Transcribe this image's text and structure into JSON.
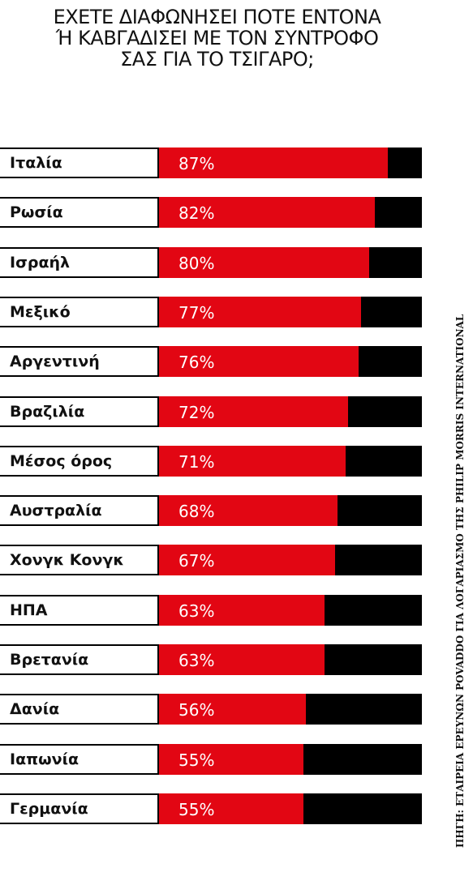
{
  "title_lines": [
    "ΕΧΕΤΕ ΔΙΑΦΩΝΗΣΕΙ ΠΟΤΕ ΕΝΤΟΝΑ",
    "Ή ΚΑΒΓΑΔΙΣΕΙ ΜΕ ΤΟΝ ΣΥΝΤΡΟΦΟ",
    "ΣΑΣ ΓΙΑ ΤΟ ΤΣΙΓΑΡΟ;"
  ],
  "source": "ΠΗΓΗ: ΕΤΑΙΡΕΙΑ ΕΡΕΥΝΩΝ POVADDO ΓΙΑ ΛΟΓΑΡΙΑΣΜΟ ΤΗΣ PHILIP MORRIS INTERNATIONAL",
  "colors": {
    "bar": "#e20613",
    "remainder": "#000000",
    "label_bg": "#ffffff"
  },
  "chart_data": {
    "type": "bar",
    "orientation": "horizontal",
    "categories": [
      "Ιταλία",
      "Ρωσία",
      "Ισραήλ",
      "Μεξικό",
      "Αργεντινή",
      "Βραζιλία",
      "Μέσος όρος",
      "Αυστραλία",
      "Χονγκ Κονγκ",
      "ΗΠΑ",
      "Βρετανία",
      "Δανία",
      "Ιαπωνία",
      "Γερμανία"
    ],
    "values": [
      87,
      82,
      80,
      77,
      76,
      72,
      71,
      68,
      67,
      63,
      63,
      56,
      55,
      55
    ],
    "value_labels": [
      "87%",
      "82%",
      "80%",
      "77%",
      "76%",
      "72%",
      "71%",
      "68%",
      "67%",
      "63%",
      "63%",
      "56%",
      "55%",
      "55%"
    ],
    "xlim": [
      0,
      100
    ],
    "unit": "%",
    "grid": false,
    "legend": "none"
  }
}
